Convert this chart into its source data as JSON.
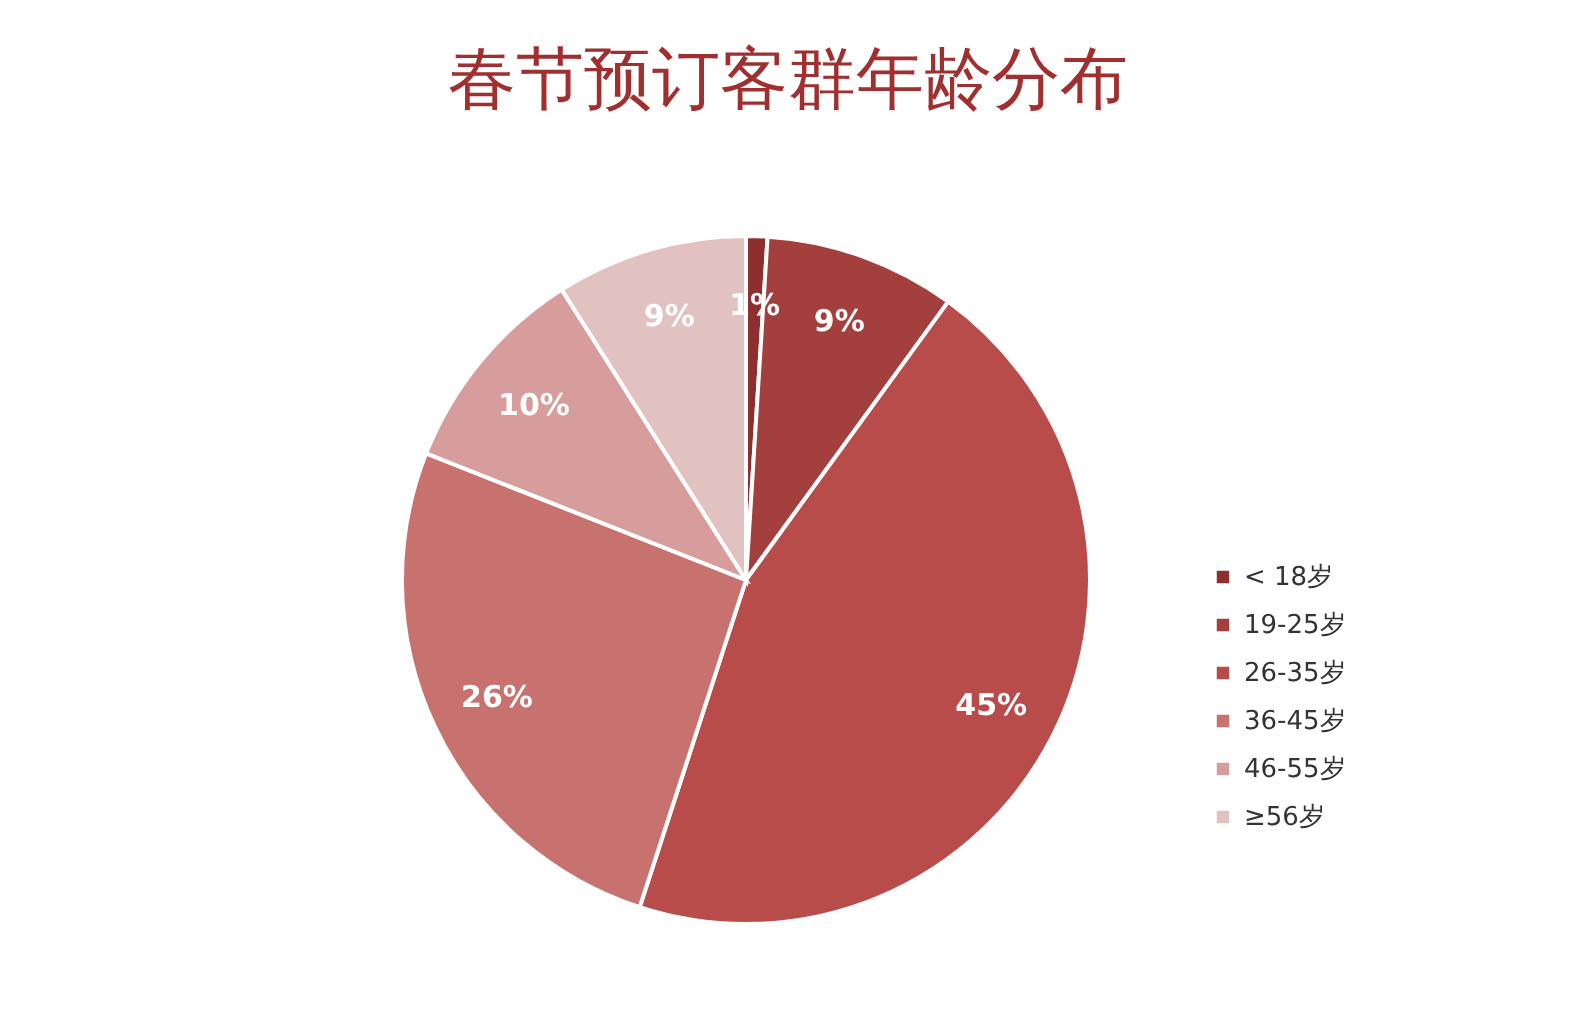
{
  "chart_data": {
    "type": "pie",
    "title": "春节预订客群年龄分布",
    "categories": [
      "< 18岁",
      "19-25岁",
      "26-35岁",
      "36-45岁",
      "46-55岁",
      "≥56岁"
    ],
    "values": [
      1,
      9,
      45,
      26,
      10,
      9
    ],
    "value_labels": [
      "1%",
      "9%",
      "45%",
      "26%",
      "10%",
      "9%"
    ],
    "colors": [
      "#8e2f2f",
      "#a33f3d",
      "#b84c4a",
      "#c87270",
      "#d69d9c",
      "#e2c1c1"
    ],
    "legend": "right"
  }
}
